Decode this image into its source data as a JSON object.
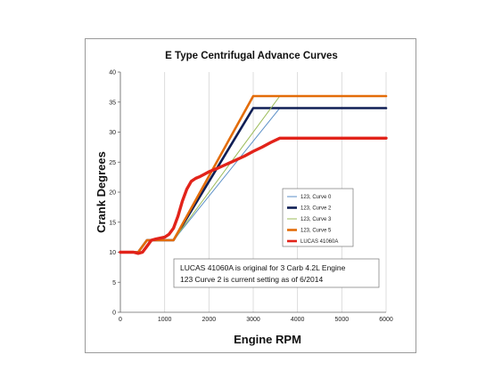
{
  "chart_data": {
    "type": "line",
    "title": "E Type  Centrifugal Advance Curves",
    "xlabel": "Engine RPM",
    "ylabel": "Crank Degrees",
    "xlim": [
      0,
      6000
    ],
    "ylim": [
      0,
      40
    ],
    "xticks": [
      0,
      1000,
      2000,
      3000,
      4000,
      5000,
      6000
    ],
    "yticks": [
      0,
      5,
      10,
      15,
      20,
      25,
      30,
      35,
      40
    ],
    "grid": "vertical",
    "legend_position": "right",
    "series": [
      {
        "name": "123, Curve 0",
        "color": "#5b8fc7",
        "weight": "thin",
        "points": [
          [
            0,
            10
          ],
          [
            400,
            10
          ],
          [
            600,
            12
          ],
          [
            1200,
            12
          ],
          [
            3600,
            34
          ],
          [
            6000,
            34
          ]
        ]
      },
      {
        "name": "123, Curve 2",
        "color": "#0f1e55",
        "weight": "bold",
        "points": [
          [
            0,
            10
          ],
          [
            400,
            10
          ],
          [
            600,
            12
          ],
          [
            1200,
            12
          ],
          [
            3000,
            34
          ],
          [
            6000,
            34
          ]
        ]
      },
      {
        "name": "123, Curve 3",
        "color": "#9bbb59",
        "weight": "thin",
        "points": [
          [
            0,
            10
          ],
          [
            400,
            10
          ],
          [
            600,
            12
          ],
          [
            1200,
            12
          ],
          [
            3600,
            36
          ],
          [
            6000,
            36
          ]
        ]
      },
      {
        "name": "123, Curve 5",
        "color": "#e36c09",
        "weight": "bold",
        "points": [
          [
            0,
            10
          ],
          [
            400,
            10
          ],
          [
            600,
            12
          ],
          [
            1200,
            12
          ],
          [
            3000,
            36
          ],
          [
            6000,
            36
          ]
        ]
      },
      {
        "name": "LUCAS 41060A",
        "color": "#e2231a",
        "weight": "heavy",
        "points": [
          [
            0,
            10
          ],
          [
            300,
            10
          ],
          [
            400,
            9.8
          ],
          [
            500,
            10
          ],
          [
            600,
            11
          ],
          [
            700,
            12
          ],
          [
            800,
            12.2
          ],
          [
            1000,
            12.5
          ],
          [
            1100,
            13
          ],
          [
            1200,
            14
          ],
          [
            1300,
            16
          ],
          [
            1400,
            18.5
          ],
          [
            1500,
            20.5
          ],
          [
            1600,
            21.8
          ],
          [
            1700,
            22.3
          ],
          [
            1800,
            22.6
          ],
          [
            1900,
            23
          ],
          [
            2000,
            23.4
          ],
          [
            2200,
            24
          ],
          [
            2500,
            25
          ],
          [
            2800,
            26
          ],
          [
            3000,
            26.8
          ],
          [
            3200,
            27.5
          ],
          [
            3400,
            28.3
          ],
          [
            3600,
            29
          ],
          [
            6000,
            29
          ]
        ]
      }
    ],
    "annotation": [
      "LUCAS 41060A is original for 3 Carb 4.2L Engine",
      "123 Curve 2 is current setting as of 6/2014"
    ]
  }
}
